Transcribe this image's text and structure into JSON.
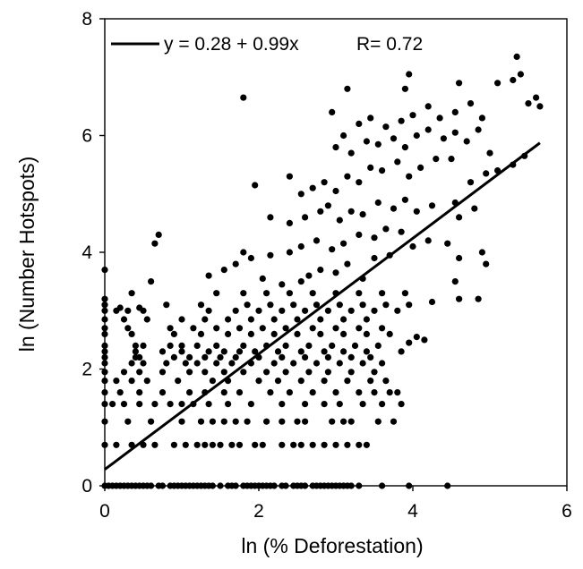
{
  "chart_data": {
    "type": "scatter",
    "title": "",
    "xlabel": "ln (% Deforestation)",
    "ylabel": "ln (Number Hotspots)",
    "xlim": [
      0,
      6
    ],
    "ylim": [
      0,
      8
    ],
    "x_ticks": [
      "0",
      "2",
      "4",
      "6"
    ],
    "y_ticks": [
      "0",
      "2",
      "4",
      "6",
      "8"
    ],
    "grid": false,
    "legend_position": "top-left",
    "colors": {
      "points": "#000000",
      "fit_line": "#000000",
      "axes": "#000000"
    },
    "fit_line": {
      "intercept": 0.28,
      "slope": 0.99,
      "x_range": [
        0,
        5.65
      ],
      "equation_label": "y = 0.28 + 0.99x",
      "r_label": "R= 0.72"
    },
    "points": [
      [
        0.0,
        0.0
      ],
      [
        0.05,
        0.0
      ],
      [
        0.1,
        0.0
      ],
      [
        0.15,
        0.0
      ],
      [
        0.2,
        0.0
      ],
      [
        0.25,
        0.0
      ],
      [
        0.3,
        0.0
      ],
      [
        0.35,
        0.0
      ],
      [
        0.4,
        0.0
      ],
      [
        0.45,
        0.0
      ],
      [
        0.5,
        0.0
      ],
      [
        0.55,
        0.0
      ],
      [
        0.6,
        0.0
      ],
      [
        0.7,
        0.0
      ],
      [
        0.75,
        0.0
      ],
      [
        0.85,
        0.0
      ],
      [
        0.9,
        0.0
      ],
      [
        0.95,
        0.0
      ],
      [
        1.0,
        0.0
      ],
      [
        1.05,
        0.0
      ],
      [
        1.1,
        0.0
      ],
      [
        1.15,
        0.0
      ],
      [
        1.2,
        0.0
      ],
      [
        1.25,
        0.0
      ],
      [
        1.3,
        0.0
      ],
      [
        1.35,
        0.0
      ],
      [
        1.4,
        0.0
      ],
      [
        1.5,
        0.0
      ],
      [
        1.6,
        0.0
      ],
      [
        1.65,
        0.0
      ],
      [
        1.7,
        0.0
      ],
      [
        1.8,
        0.0
      ],
      [
        1.85,
        0.0
      ],
      [
        1.9,
        0.0
      ],
      [
        1.95,
        0.0
      ],
      [
        2.0,
        0.0
      ],
      [
        2.05,
        0.0
      ],
      [
        2.1,
        0.0
      ],
      [
        2.15,
        0.0
      ],
      [
        2.2,
        0.0
      ],
      [
        2.3,
        0.0
      ],
      [
        2.35,
        0.0
      ],
      [
        2.45,
        0.0
      ],
      [
        2.5,
        0.0
      ],
      [
        2.55,
        0.0
      ],
      [
        2.6,
        0.0
      ],
      [
        2.7,
        0.0
      ],
      [
        2.75,
        0.0
      ],
      [
        2.8,
        0.0
      ],
      [
        2.85,
        0.0
      ],
      [
        2.9,
        0.0
      ],
      [
        2.95,
        0.0
      ],
      [
        3.0,
        0.0
      ],
      [
        3.05,
        0.0
      ],
      [
        3.1,
        0.0
      ],
      [
        3.15,
        0.0
      ],
      [
        3.2,
        0.0
      ],
      [
        3.3,
        0.0
      ],
      [
        3.6,
        0.0
      ],
      [
        3.95,
        0.0
      ],
      [
        4.45,
        0.0
      ],
      [
        0.0,
        0.7
      ],
      [
        0.15,
        0.7
      ],
      [
        0.35,
        0.7
      ],
      [
        0.5,
        0.7
      ],
      [
        0.65,
        0.7
      ],
      [
        0.9,
        0.7
      ],
      [
        1.05,
        0.7
      ],
      [
        1.2,
        0.7
      ],
      [
        1.3,
        0.7
      ],
      [
        1.4,
        0.7
      ],
      [
        1.5,
        0.7
      ],
      [
        1.65,
        0.7
      ],
      [
        1.75,
        0.7
      ],
      [
        1.95,
        0.7
      ],
      [
        2.05,
        0.7
      ],
      [
        2.3,
        0.7
      ],
      [
        2.45,
        0.7
      ],
      [
        2.55,
        0.7
      ],
      [
        2.7,
        0.7
      ],
      [
        2.85,
        0.7
      ],
      [
        3.0,
        0.7
      ],
      [
        3.15,
        0.7
      ],
      [
        3.3,
        0.7
      ],
      [
        3.4,
        0.7
      ],
      [
        0.0,
        1.1
      ],
      [
        0.3,
        1.1
      ],
      [
        0.6,
        1.1
      ],
      [
        1.0,
        1.1
      ],
      [
        1.25,
        1.1
      ],
      [
        1.4,
        1.1
      ],
      [
        1.55,
        1.1
      ],
      [
        1.7,
        1.1
      ],
      [
        1.85,
        1.1
      ],
      [
        2.1,
        1.1
      ],
      [
        2.3,
        1.1
      ],
      [
        2.5,
        1.1
      ],
      [
        2.6,
        1.1
      ],
      [
        2.95,
        1.1
      ],
      [
        3.1,
        1.1
      ],
      [
        3.2,
        1.1
      ],
      [
        3.55,
        1.1
      ],
      [
        3.75,
        1.1
      ],
      [
        0.0,
        1.4
      ],
      [
        0.1,
        1.4
      ],
      [
        0.25,
        1.4
      ],
      [
        0.45,
        1.4
      ],
      [
        0.65,
        1.4
      ],
      [
        0.85,
        1.4
      ],
      [
        1.0,
        1.4
      ],
      [
        1.15,
        1.4
      ],
      [
        1.35,
        1.4
      ],
      [
        1.6,
        1.4
      ],
      [
        1.9,
        1.4
      ],
      [
        2.3,
        1.4
      ],
      [
        2.6,
        1.4
      ],
      [
        2.85,
        1.4
      ],
      [
        3.05,
        1.4
      ],
      [
        3.35,
        1.4
      ],
      [
        3.6,
        1.4
      ],
      [
        3.85,
        1.4
      ],
      [
        0.0,
        1.6
      ],
      [
        0.2,
        1.6
      ],
      [
        0.45,
        1.6
      ],
      [
        0.75,
        1.6
      ],
      [
        1.1,
        1.6
      ],
      [
        1.3,
        1.6
      ],
      [
        1.55,
        1.6
      ],
      [
        1.75,
        1.6
      ],
      [
        2.15,
        1.6
      ],
      [
        2.4,
        1.6
      ],
      [
        2.7,
        1.6
      ],
      [
        3.0,
        1.6
      ],
      [
        3.3,
        1.6
      ],
      [
        3.5,
        1.6
      ],
      [
        3.7,
        1.6
      ],
      [
        3.8,
        1.6
      ],
      [
        0.0,
        1.8
      ],
      [
        0.15,
        1.8
      ],
      [
        0.35,
        1.8
      ],
      [
        0.55,
        1.8
      ],
      [
        0.95,
        1.8
      ],
      [
        1.4,
        1.8
      ],
      [
        1.6,
        1.8
      ],
      [
        2.0,
        1.8
      ],
      [
        2.25,
        1.8
      ],
      [
        2.55,
        1.8
      ],
      [
        2.85,
        1.8
      ],
      [
        3.15,
        1.8
      ],
      [
        3.45,
        1.8
      ],
      [
        3.65,
        1.8
      ],
      [
        0.0,
        1.95
      ],
      [
        0.25,
        1.95
      ],
      [
        0.45,
        1.95
      ],
      [
        0.75,
        1.95
      ],
      [
        1.1,
        1.95
      ],
      [
        1.3,
        1.95
      ],
      [
        1.55,
        1.95
      ],
      [
        1.8,
        1.95
      ],
      [
        2.1,
        1.95
      ],
      [
        2.35,
        1.95
      ],
      [
        2.65,
        1.95
      ],
      [
        2.9,
        1.95
      ],
      [
        3.2,
        1.95
      ],
      [
        3.5,
        1.95
      ],
      [
        0.0,
        2.1
      ],
      [
        0.35,
        2.1
      ],
      [
        0.5,
        2.1
      ],
      [
        0.8,
        2.1
      ],
      [
        1.05,
        2.1
      ],
      [
        1.2,
        2.1
      ],
      [
        1.45,
        2.1
      ],
      [
        1.65,
        2.1
      ],
      [
        1.9,
        2.1
      ],
      [
        2.2,
        2.1
      ],
      [
        2.45,
        2.1
      ],
      [
        2.75,
        2.1
      ],
      [
        3.05,
        2.1
      ],
      [
        3.35,
        2.1
      ],
      [
        3.6,
        2.1
      ],
      [
        0.0,
        2.2
      ],
      [
        0.4,
        2.2
      ],
      [
        0.45,
        2.2
      ],
      [
        0.9,
        2.2
      ],
      [
        1.1,
        2.2
      ],
      [
        1.3,
        2.2
      ],
      [
        1.5,
        2.2
      ],
      [
        1.7,
        2.2
      ],
      [
        2.0,
        2.2
      ],
      [
        2.3,
        2.2
      ],
      [
        2.6,
        2.2
      ],
      [
        2.9,
        2.2
      ],
      [
        3.2,
        2.2
      ],
      [
        3.45,
        2.2
      ],
      [
        0.0,
        2.3
      ],
      [
        0.4,
        2.3
      ],
      [
        0.75,
        2.3
      ],
      [
        1.0,
        2.3
      ],
      [
        1.35,
        2.3
      ],
      [
        1.55,
        2.3
      ],
      [
        1.75,
        2.3
      ],
      [
        1.95,
        2.3
      ],
      [
        2.25,
        2.3
      ],
      [
        2.55,
        2.3
      ],
      [
        2.85,
        2.3
      ],
      [
        3.1,
        2.3
      ],
      [
        3.4,
        2.3
      ],
      [
        3.85,
        2.3
      ],
      [
        0.0,
        2.4
      ],
      [
        0.4,
        2.4
      ],
      [
        0.5,
        2.4
      ],
      [
        0.85,
        2.4
      ],
      [
        1.0,
        2.4
      ],
      [
        1.2,
        2.4
      ],
      [
        1.45,
        2.4
      ],
      [
        1.8,
        2.4
      ],
      [
        2.1,
        2.4
      ],
      [
        2.35,
        2.4
      ],
      [
        2.65,
        2.4
      ],
      [
        2.95,
        2.4
      ],
      [
        3.25,
        2.4
      ],
      [
        3.55,
        2.4
      ],
      [
        3.95,
        2.45
      ],
      [
        4.05,
        2.55
      ],
      [
        4.15,
        2.5
      ],
      [
        0.0,
        2.6
      ],
      [
        0.35,
        2.6
      ],
      [
        0.9,
        2.6
      ],
      [
        1.25,
        2.6
      ],
      [
        1.6,
        2.6
      ],
      [
        1.9,
        2.6
      ],
      [
        2.2,
        2.6
      ],
      [
        2.5,
        2.6
      ],
      [
        2.8,
        2.6
      ],
      [
        3.1,
        2.6
      ],
      [
        3.4,
        2.6
      ],
      [
        3.7,
        2.6
      ],
      [
        0.0,
        2.7
      ],
      [
        0.3,
        2.7
      ],
      [
        0.85,
        2.7
      ],
      [
        1.15,
        2.7
      ],
      [
        1.45,
        2.7
      ],
      [
        1.75,
        2.7
      ],
      [
        2.05,
        2.7
      ],
      [
        2.35,
        2.7
      ],
      [
        2.7,
        2.7
      ],
      [
        3.0,
        2.7
      ],
      [
        3.3,
        2.7
      ],
      [
        3.6,
        2.7
      ],
      [
        0.0,
        2.85
      ],
      [
        0.25,
        2.85
      ],
      [
        0.55,
        2.85
      ],
      [
        1.0,
        2.85
      ],
      [
        1.3,
        2.85
      ],
      [
        1.6,
        2.85
      ],
      [
        1.9,
        2.85
      ],
      [
        2.2,
        2.85
      ],
      [
        2.5,
        2.85
      ],
      [
        2.8,
        2.85
      ],
      [
        3.1,
        2.85
      ],
      [
        3.4,
        2.85
      ],
      [
        0.0,
        3.0
      ],
      [
        0.15,
        3.0
      ],
      [
        0.3,
        3.0
      ],
      [
        0.5,
        3.0
      ],
      [
        1.35,
        3.0
      ],
      [
        1.7,
        3.0
      ],
      [
        2.0,
        3.0
      ],
      [
        2.3,
        3.0
      ],
      [
        2.6,
        3.0
      ],
      [
        2.9,
        3.0
      ],
      [
        3.2,
        3.0
      ],
      [
        3.5,
        3.0
      ],
      [
        3.8,
        3.0
      ],
      [
        0.0,
        3.1
      ],
      [
        0.2,
        3.05
      ],
      [
        0.45,
        3.05
      ],
      [
        0.8,
        3.1
      ],
      [
        1.25,
        3.1
      ],
      [
        1.85,
        3.1
      ],
      [
        2.15,
        3.1
      ],
      [
        2.45,
        3.1
      ],
      [
        2.75,
        3.1
      ],
      [
        3.05,
        3.1
      ],
      [
        3.35,
        3.1
      ],
      [
        3.65,
        3.1
      ],
      [
        3.95,
        3.1
      ],
      [
        4.25,
        3.15
      ],
      [
        4.6,
        3.2
      ],
      [
        4.85,
        3.2
      ],
      [
        0.0,
        3.2
      ],
      [
        0.35,
        3.3
      ],
      [
        0.6,
        3.5
      ],
      [
        1.45,
        3.3
      ],
      [
        1.8,
        3.3
      ],
      [
        2.1,
        3.3
      ],
      [
        2.4,
        3.3
      ],
      [
        2.7,
        3.3
      ],
      [
        3.0,
        3.3
      ],
      [
        3.3,
        3.3
      ],
      [
        3.6,
        3.3
      ],
      [
        3.9,
        3.3
      ],
      [
        0.0,
        3.7
      ],
      [
        0.65,
        4.15
      ],
      [
        0.7,
        4.3
      ],
      [
        1.35,
        3.6
      ],
      [
        1.55,
        3.7
      ],
      [
        1.7,
        3.8
      ],
      [
        1.8,
        4.0
      ],
      [
        2.05,
        3.55
      ],
      [
        2.3,
        3.45
      ],
      [
        2.55,
        3.5
      ],
      [
        2.65,
        3.6
      ],
      [
        2.8,
        3.7
      ],
      [
        3.0,
        3.65
      ],
      [
        3.15,
        3.8
      ],
      [
        3.35,
        3.55
      ],
      [
        3.5,
        3.9
      ],
      [
        3.7,
        3.95
      ],
      [
        4.55,
        3.5
      ],
      [
        4.6,
        3.9
      ],
      [
        4.9,
        4.0
      ],
      [
        4.95,
        3.8
      ],
      [
        1.9,
        3.9
      ],
      [
        2.15,
        3.95
      ],
      [
        2.4,
        4.0
      ],
      [
        2.55,
        4.1
      ],
      [
        2.75,
        4.2
      ],
      [
        2.95,
        4.05
      ],
      [
        3.1,
        4.15
      ],
      [
        3.3,
        4.3
      ],
      [
        3.5,
        4.25
      ],
      [
        3.65,
        4.4
      ],
      [
        3.85,
        4.35
      ],
      [
        4.0,
        4.1
      ],
      [
        4.2,
        4.2
      ],
      [
        4.45,
        4.15
      ],
      [
        4.6,
        4.6
      ],
      [
        1.95,
        5.15
      ],
      [
        2.15,
        4.6
      ],
      [
        2.4,
        4.5
      ],
      [
        2.6,
        4.6
      ],
      [
        2.8,
        4.7
      ],
      [
        2.9,
        4.8
      ],
      [
        3.05,
        4.55
      ],
      [
        3.2,
        4.7
      ],
      [
        3.35,
        4.65
      ],
      [
        3.55,
        4.85
      ],
      [
        3.75,
        4.75
      ],
      [
        3.9,
        4.9
      ],
      [
        4.05,
        4.7
      ],
      [
        4.25,
        4.8
      ],
      [
        4.55,
        4.85
      ],
      [
        4.8,
        4.75
      ],
      [
        2.4,
        5.3
      ],
      [
        2.55,
        5.0
      ],
      [
        2.7,
        5.1
      ],
      [
        2.85,
        5.2
      ],
      [
        3.0,
        5.05
      ],
      [
        3.15,
        5.3
      ],
      [
        3.3,
        5.2
      ],
      [
        3.45,
        5.45
      ],
      [
        3.6,
        5.4
      ],
      [
        3.8,
        5.55
      ],
      [
        3.95,
        5.3
      ],
      [
        4.1,
        5.45
      ],
      [
        4.3,
        5.6
      ],
      [
        4.5,
        5.6
      ],
      [
        4.75,
        5.2
      ],
      [
        4.95,
        5.35
      ],
      [
        5.1,
        5.4
      ],
      [
        5.3,
        5.5
      ],
      [
        5.45,
        5.65
      ],
      [
        3.0,
        5.8
      ],
      [
        3.2,
        5.7
      ],
      [
        3.4,
        5.9
      ],
      [
        3.55,
        5.85
      ],
      [
        3.75,
        5.95
      ],
      [
        3.9,
        5.8
      ],
      [
        4.05,
        6.0
      ],
      [
        4.2,
        6.1
      ],
      [
        4.4,
        5.95
      ],
      [
        4.55,
        6.05
      ],
      [
        4.7,
        5.9
      ],
      [
        4.85,
        6.1
      ],
      [
        5.0,
        5.7
      ],
      [
        1.8,
        6.65
      ],
      [
        2.95,
        6.4
      ],
      [
        3.1,
        6.0
      ],
      [
        3.3,
        6.2
      ],
      [
        3.45,
        6.3
      ],
      [
        3.65,
        6.15
      ],
      [
        3.85,
        6.25
      ],
      [
        4.0,
        6.35
      ],
      [
        4.2,
        6.5
      ],
      [
        4.35,
        6.3
      ],
      [
        4.55,
        6.4
      ],
      [
        4.75,
        6.55
      ],
      [
        4.9,
        6.3
      ],
      [
        5.1,
        6.9
      ],
      [
        5.3,
        6.95
      ],
      [
        5.4,
        7.05
      ],
      [
        5.5,
        6.55
      ],
      [
        5.6,
        6.65
      ],
      [
        5.65,
        6.5
      ],
      [
        5.35,
        7.35
      ],
      [
        3.95,
        7.05
      ],
      [
        3.15,
        6.8
      ],
      [
        3.9,
        6.8
      ],
      [
        4.6,
        6.9
      ]
    ]
  }
}
